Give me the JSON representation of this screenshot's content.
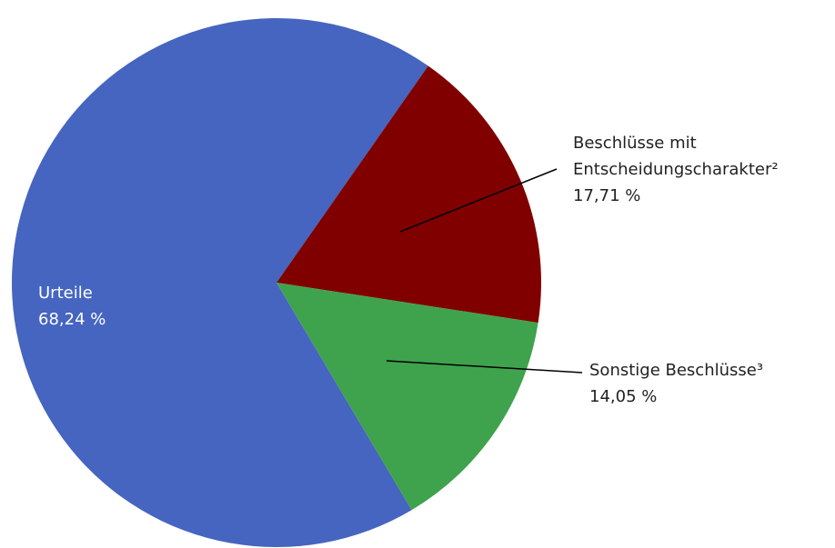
{
  "chart_data": {
    "type": "pie",
    "categories": [
      "Urteile",
      "Beschlüsse mit Entscheidungscharakter²",
      "Sonstige Beschlüsse³"
    ],
    "values": [
      68.24,
      17.71,
      14.05
    ],
    "value_labels": [
      "68,24 %",
      "17,71 %",
      "14,05 %"
    ],
    "colors": [
      "#4565c0",
      "#800000",
      "#3fa34d"
    ]
  }
}
